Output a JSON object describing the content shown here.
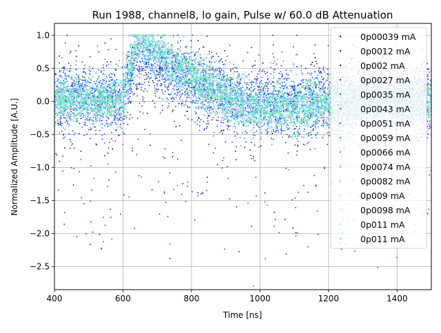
{
  "chart_data": {
    "type": "scatter",
    "title": "Run 1988, channel8, lo gain, Pulse w/ 60.0 dB Attenuation",
    "xlabel": "Time [ns]",
    "ylabel": "Normalized Amplitude [A.U.]",
    "xlim": [
      400,
      1500
    ],
    "ylim": [
      -2.85,
      1.18
    ],
    "grid": true,
    "legend_position": "upper-right",
    "x_ticks": [
      {
        "value": 400,
        "label": "400"
      },
      {
        "value": 600,
        "label": "600"
      },
      {
        "value": 800,
        "label": "800"
      },
      {
        "value": 1000,
        "label": "1000"
      },
      {
        "value": 1200,
        "label": "1200"
      },
      {
        "value": 1400,
        "label": "1400"
      }
    ],
    "y_ticks": [
      {
        "value": 1.0,
        "label": "1.0"
      },
      {
        "value": 0.5,
        "label": "0.5"
      },
      {
        "value": 0.0,
        "label": "0.0"
      },
      {
        "value": -0.5,
        "label": "−0.5"
      },
      {
        "value": -1.0,
        "label": "−1.0"
      },
      {
        "value": -1.5,
        "label": "−1.5"
      },
      {
        "value": -2.0,
        "label": "−2.0"
      },
      {
        "value": -2.5,
        "label": "−2.5"
      }
    ],
    "pulse": {
      "start": 600,
      "peak": 640,
      "decay_end": 1000
    },
    "series": [
      {
        "name": "0p00039 mA",
        "color": "#0a0a6e",
        "center_amplitude": 0.08,
        "spread": 0.62,
        "pulse_amplitude": 0.45
      },
      {
        "name": "0p0012 mA",
        "color": "#1a1aa0",
        "center_amplitude": 0.05,
        "spread": 0.58,
        "pulse_amplitude": 0.5
      },
      {
        "name": "0p002 mA",
        "color": "#1c1cc8",
        "center_amplitude": 0.05,
        "spread": 0.55,
        "pulse_amplitude": 0.55
      },
      {
        "name": "0p0027 mA",
        "color": "#1a2ee0",
        "center_amplitude": 0.04,
        "spread": 0.5,
        "pulse_amplitude": 0.6
      },
      {
        "name": "0p0035 mA",
        "color": "#1e4ef0",
        "center_amplitude": 0.04,
        "spread": 0.46,
        "pulse_amplitude": 0.65
      },
      {
        "name": "0p0043 mA",
        "color": "#2060f5",
        "center_amplitude": 0.03,
        "spread": 0.42,
        "pulse_amplitude": 0.7
      },
      {
        "name": "0p0051 mA",
        "color": "#1a78f8",
        "center_amplitude": 0.03,
        "spread": 0.4,
        "pulse_amplitude": 0.75
      },
      {
        "name": "0p0059 mA",
        "color": "#1490f8",
        "center_amplitude": 0.03,
        "spread": 0.38,
        "pulse_amplitude": 0.8
      },
      {
        "name": "0p0066 mA",
        "color": "#30a8f8",
        "center_amplitude": 0.03,
        "spread": 0.36,
        "pulse_amplitude": 0.85
      },
      {
        "name": "0p0074 mA",
        "color": "#70b8f8",
        "center_amplitude": 0.02,
        "spread": 0.36,
        "pulse_amplitude": 0.88
      },
      {
        "name": "0p0082 mA",
        "color": "#a8c0f8",
        "center_amplitude": 0.02,
        "spread": 0.35,
        "pulse_amplitude": 0.92
      },
      {
        "name": "0p009 mA",
        "color": "#b8d0fa",
        "center_amplitude": 0.02,
        "spread": 0.34,
        "pulse_amplitude": 0.95
      },
      {
        "name": "0p0098 mA",
        "color": "#c8dcfa",
        "center_amplitude": 0.02,
        "spread": 0.33,
        "pulse_amplitude": 0.97
      },
      {
        "name": "0p011 mA",
        "color": "#8ce8e8",
        "center_amplitude": 0.02,
        "spread": 0.3,
        "pulse_amplitude": 1.0
      },
      {
        "name": "0p011 mA",
        "color": "#60f0a8",
        "center_amplitude": 0.02,
        "spread": 0.28,
        "pulse_amplitude": 1.0
      }
    ]
  }
}
